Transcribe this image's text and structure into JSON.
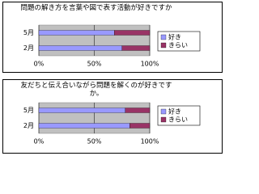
{
  "chart_data": [
    {
      "type": "stacked-bar-horizontal",
      "title": "問題の解き方を言葉や図で表す活動が好きですか",
      "categories": [
        "5月",
        "2月"
      ],
      "series": [
        {
          "name": "好き",
          "color": "#9999ff",
          "values": [
            68,
            75
          ]
        },
        {
          "name": "きらい",
          "color": "#993366",
          "values": [
            32,
            25
          ]
        }
      ],
      "xlim": [
        0,
        100
      ],
      "xticks": [
        {
          "value": 0,
          "label": "0%"
        },
        {
          "value": 50,
          "label": "50%"
        },
        {
          "value": 100,
          "label": "100%"
        }
      ],
      "grid": true
    },
    {
      "type": "stacked-bar-horizontal",
      "title": "友だちと伝え合いながら問題を解くのが好きですか。",
      "categories": [
        "5月",
        "2月"
      ],
      "series": [
        {
          "name": "好き",
          "color": "#9999ff",
          "values": [
            78,
            82
          ]
        },
        {
          "name": "きらい",
          "color": "#993366",
          "values": [
            22,
            18
          ]
        }
      ],
      "xlim": [
        0,
        100
      ],
      "xticks": [
        {
          "value": 0,
          "label": "0%"
        },
        {
          "value": 50,
          "label": "50%"
        },
        {
          "value": 100,
          "label": "100%"
        }
      ],
      "grid": true
    }
  ]
}
